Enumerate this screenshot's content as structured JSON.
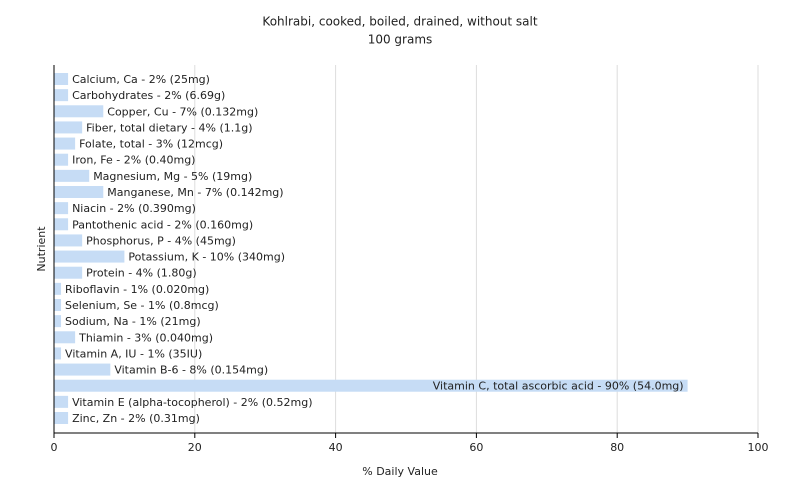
{
  "chart_data": {
    "type": "hbar",
    "title": "Kohlrabi, cooked, boiled, drained, without salt",
    "subtitle": "100 grams",
    "x_label": "% Daily Value",
    "y_label": "Nutrient",
    "values": [
      2,
      2,
      7,
      4,
      3,
      2,
      5,
      7,
      2,
      2,
      4,
      10,
      4,
      1,
      1,
      1,
      3,
      1,
      8,
      90,
      2,
      2
    ],
    "value_labels": [
      "Calcium, Ca - 2% (25mg)",
      "Carbohydrates - 2% (6.69g)",
      "Copper, Cu - 7% (0.132mg)",
      "Fiber, total dietary - 4% (1.1g)",
      "Folate, total - 3% (12mcg)",
      "Iron, Fe - 2% (0.40mg)",
      "Magnesium, Mg - 5% (19mg)",
      "Manganese, Mn - 7% (0.142mg)",
      "Niacin - 2% (0.390mg)",
      "Pantothenic acid - 2% (0.160mg)",
      "Phosphorus, P - 4% (45mg)",
      "Potassium, K - 10% (340mg)",
      "Protein - 4% (1.80g)",
      "Riboflavin - 1% (0.020mg)",
      "Selenium, Se - 1% (0.8mcg)",
      "Sodium, Na - 1% (21mg)",
      "Thiamin - 3% (0.040mg)",
      "Vitamin A, IU - 1% (35IU)",
      "Vitamin B-6 - 8% (0.154mg)",
      "Vitamin C, total ascorbic acid - 90% (54.0mg)",
      "Vitamin E (alpha-tocopherol) - 2% (0.52mg)",
      "Zinc, Zn - 2% (0.31mg)"
    ],
    "color": "#c6dcf5",
    "xlim": [
      0,
      100
    ],
    "xticks": [
      0,
      20,
      40,
      60,
      80,
      100
    ],
    "grid": true
  }
}
